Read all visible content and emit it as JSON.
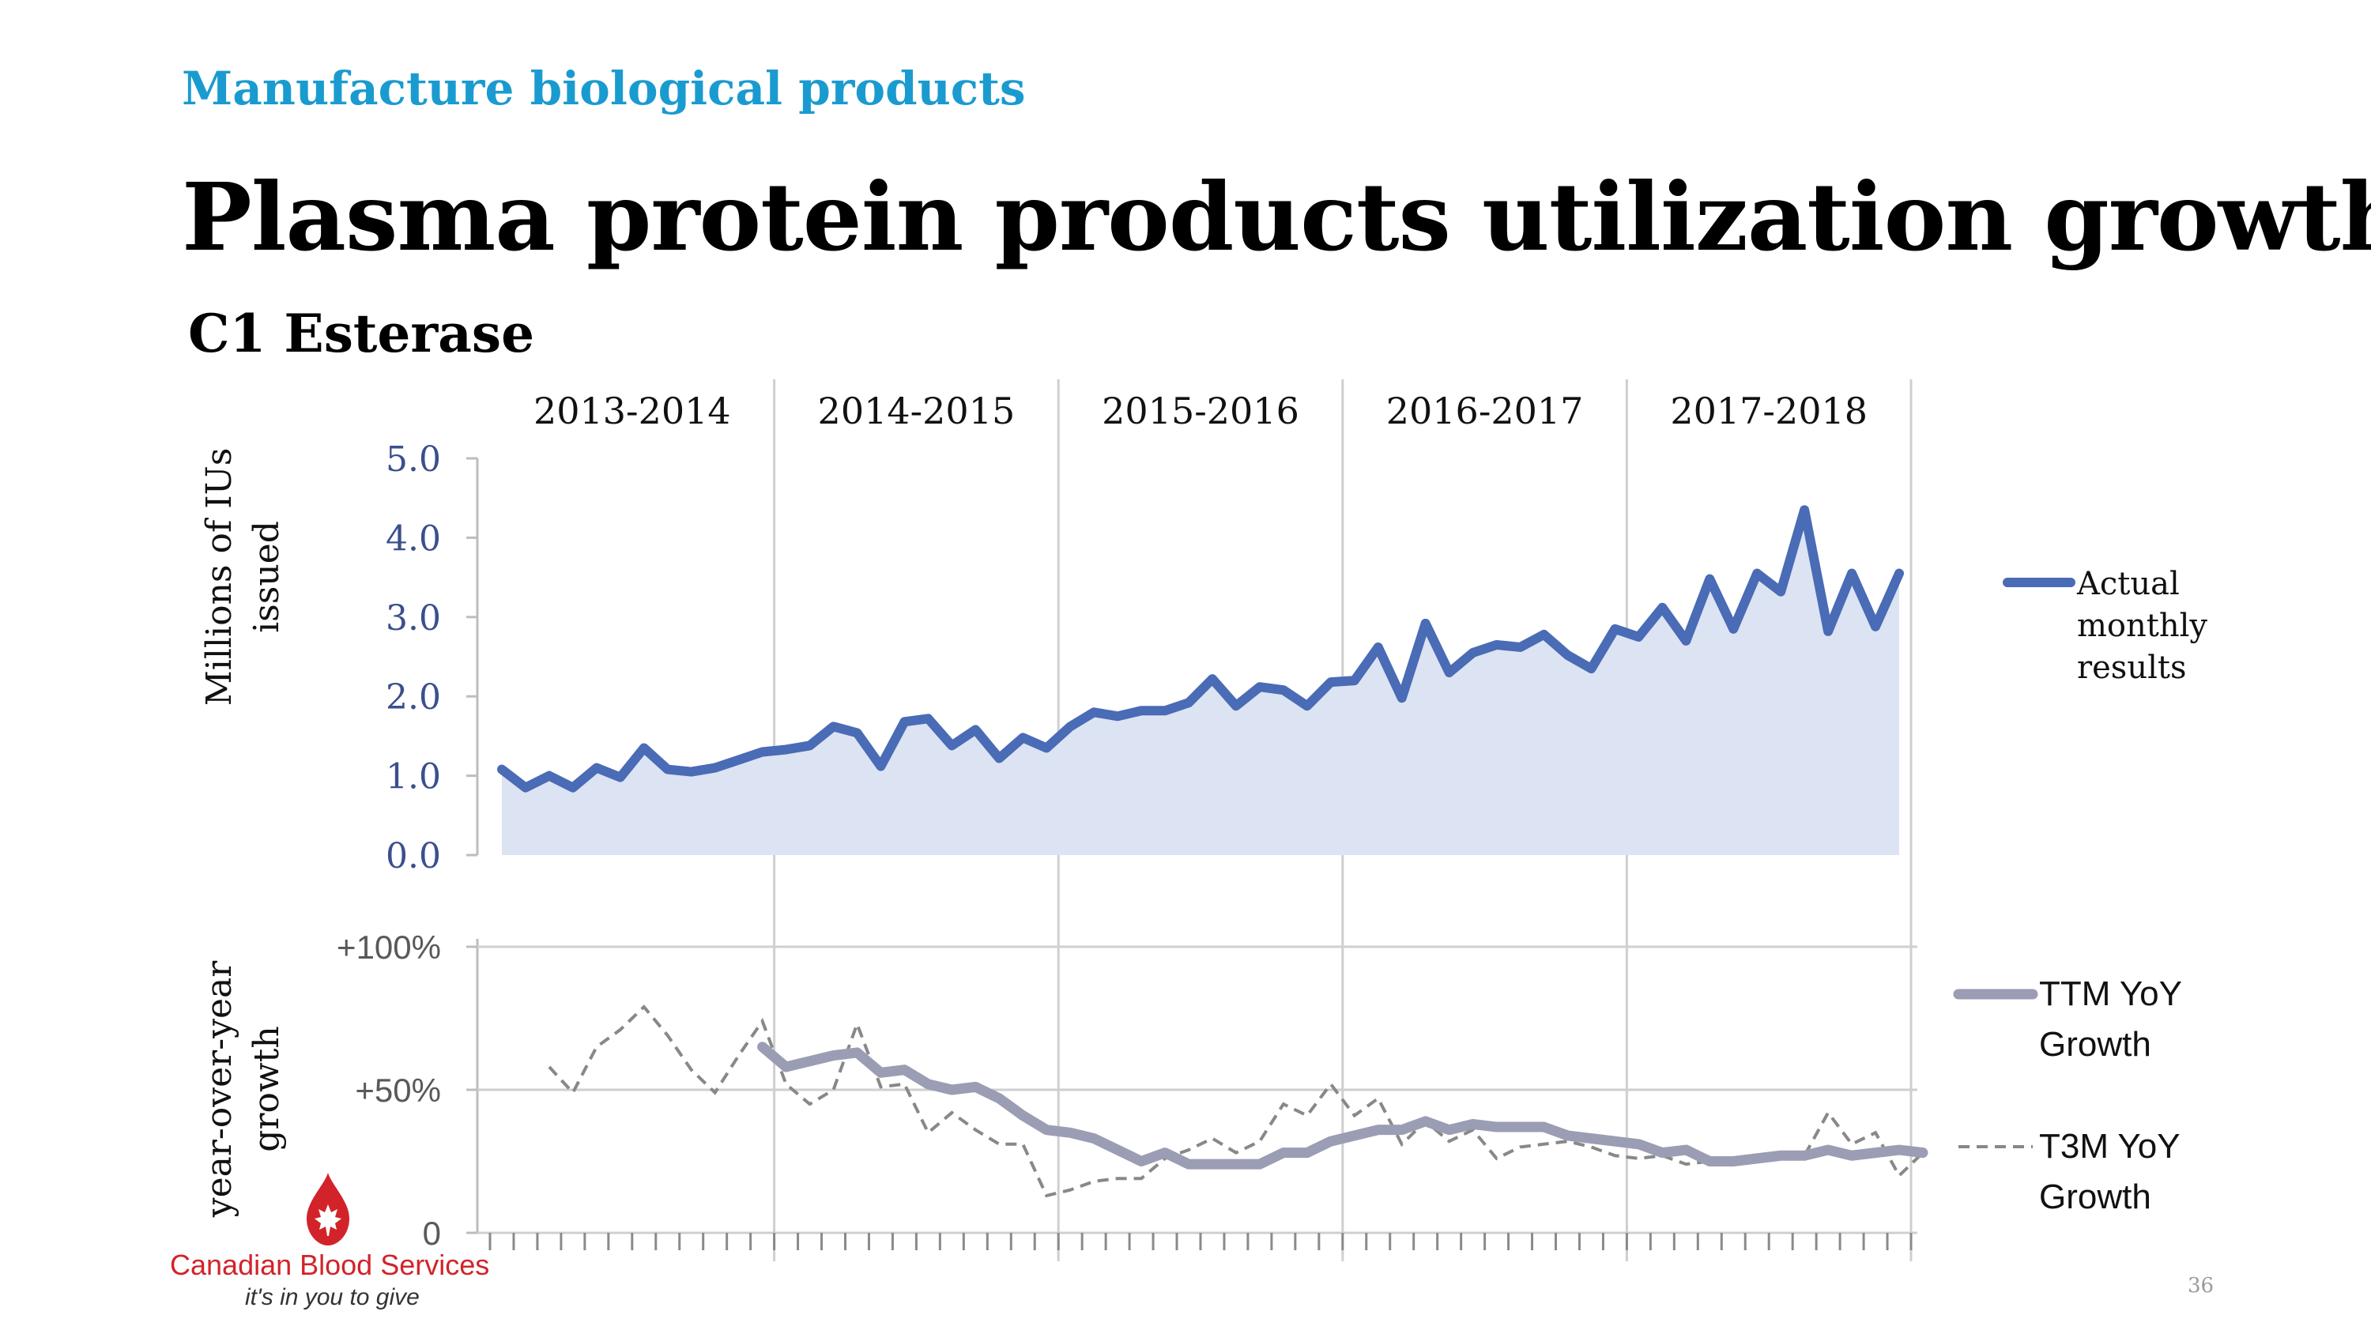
{
  "slide": {
    "kicker": "Manufacture biological products",
    "title": "Plasma protein products utilization growth",
    "subtitle": "C1 Esterase",
    "page_number": "36",
    "logo_name": "Canadian Blood Services",
    "logo_tagline": "it's in you to give"
  },
  "colors": {
    "kicker": "#1a9bd0",
    "actual_line": "#4a6bb5",
    "actual_fill": "#dce3f2",
    "ttm_line": "#9a9db3",
    "t3m_line": "#888888",
    "axis_text": "#3b4f8c",
    "brand_red": "#d2232a"
  },
  "chart_data": [
    {
      "type": "area",
      "ylabel": "Millions of IUs issued",
      "ylim": [
        0,
        5
      ],
      "yticks": [
        "0.0",
        "1.0",
        "2.0",
        "3.0",
        "4.0",
        "5.0"
      ],
      "periods": [
        "2013-2014",
        "2014-2015",
        "2015-2016",
        "2016-2017",
        "2017-2018"
      ],
      "months_per_period": 12,
      "grid": "vertical lines between fiscal years",
      "legend_position": "right",
      "series": [
        {
          "name": "Actual monthly results",
          "values": [
            1.08,
            0.85,
            1.0,
            0.85,
            1.1,
            0.98,
            1.35,
            1.08,
            1.05,
            1.1,
            1.2,
            1.3,
            1.33,
            1.38,
            1.62,
            1.54,
            1.12,
            1.68,
            1.72,
            1.38,
            1.58,
            1.22,
            1.48,
            1.35,
            1.62,
            1.8,
            1.75,
            1.82,
            1.82,
            1.92,
            2.22,
            1.88,
            2.12,
            2.08,
            1.88,
            2.18,
            2.2,
            2.62,
            1.98,
            2.92,
            2.3,
            2.55,
            2.65,
            2.62,
            2.78,
            2.52,
            2.35,
            2.85,
            2.75,
            3.12,
            2.7,
            3.48,
            2.85,
            3.55,
            3.32,
            4.35,
            2.82,
            3.55,
            2.88,
            3.55
          ]
        }
      ]
    },
    {
      "type": "line",
      "ylabel": "year-over-year growth",
      "ylim": [
        0,
        100
      ],
      "yticks": [
        "0",
        "+50%",
        "+100%"
      ],
      "legend_position": "right",
      "series": [
        {
          "name": "TTM YoY Growth",
          "start_month_index": 11,
          "values": [
            65,
            58,
            60,
            62,
            63,
            56,
            57,
            52,
            50,
            51,
            47,
            41,
            36,
            35,
            33,
            29,
            25,
            28,
            24,
            24,
            24,
            24,
            28,
            28,
            32,
            34,
            36,
            36,
            39,
            36,
            38,
            37,
            37,
            37,
            34,
            33,
            32,
            31,
            28,
            29,
            25,
            25,
            26,
            27,
            27,
            29,
            27,
            28,
            29,
            28
          ]
        },
        {
          "name": "T3M YoY Growth",
          "start_month_index": 2,
          "values": [
            58,
            49,
            65,
            71,
            79,
            69,
            57,
            49,
            62,
            74,
            52,
            45,
            50,
            73,
            51,
            52,
            35,
            42,
            36,
            31,
            31,
            13,
            15,
            18,
            19,
            19,
            26,
            29,
            33,
            28,
            32,
            45,
            41,
            52,
            41,
            47,
            31,
            39,
            32,
            36,
            26,
            30,
            31,
            32,
            30,
            27,
            26,
            27,
            24,
            25,
            24,
            25,
            26,
            27,
            42,
            31,
            35,
            20,
            28
          ]
        }
      ]
    }
  ]
}
